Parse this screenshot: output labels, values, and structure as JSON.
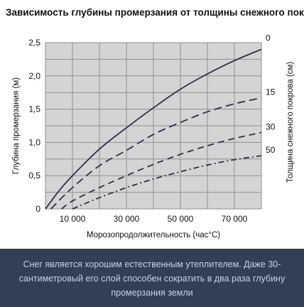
{
  "chart_data": {
    "type": "line",
    "title": "Зависимость глубины промерзания от толщины снежного покрова",
    "xlabel": "Морозопродолжительность (час°С)",
    "ylabel": "Глубина промерзания (м)",
    "y2label": "Толщина снежного покрова (см)",
    "xlim": [
      0,
      80000
    ],
    "ylim": [
      0,
      2.5
    ],
    "xticks": [
      10000,
      30000,
      50000,
      70000
    ],
    "xtick_labels": [
      "10 000",
      "30 000",
      "50 000",
      "70 000"
    ],
    "yticks": [
      0,
      0.5,
      1.0,
      1.5,
      2.0,
      2.5
    ],
    "ytick_labels": [
      "0",
      "0,5",
      "1,0",
      "1,5",
      "2,0",
      "2,5"
    ],
    "grid": true,
    "series": [
      {
        "name": "0",
        "style": "solid",
        "x": [
          0,
          5000,
          10000,
          20000,
          30000,
          40000,
          50000,
          60000,
          70000,
          80000
        ],
        "y": [
          0,
          0.27,
          0.5,
          0.9,
          1.22,
          1.52,
          1.8,
          2.03,
          2.23,
          2.4
        ]
      },
      {
        "name": "15",
        "style": "dashed",
        "x": [
          2000,
          10000,
          20000,
          30000,
          40000,
          50000,
          60000,
          70000,
          80000
        ],
        "y": [
          0,
          0.32,
          0.65,
          0.88,
          1.12,
          1.3,
          1.46,
          1.58,
          1.67
        ]
      },
      {
        "name": "30",
        "style": "dash",
        "x": [
          6000,
          10000,
          20000,
          30000,
          40000,
          50000,
          60000,
          70000,
          80000
        ],
        "y": [
          0,
          0.12,
          0.32,
          0.5,
          0.67,
          0.82,
          0.95,
          1.06,
          1.15
        ]
      },
      {
        "name": "50",
        "style": "dashdot",
        "x": [
          10000,
          20000,
          30000,
          40000,
          50000,
          60000,
          70000,
          80000
        ],
        "y": [
          0,
          0.17,
          0.32,
          0.45,
          0.56,
          0.66,
          0.74,
          0.8
        ]
      }
    ]
  },
  "colors": {
    "line": "#2e2e4a",
    "grid": "#8f8f8f",
    "plot_bg": "#d4d4d4",
    "caption_bg": "#333f55",
    "caption_text": "#c9d1e0"
  },
  "caption": "Снег является хорошим естественным утеплителем. Даже 30-сантиметровый его слой способен сократить в два раза глубину промерзания земли"
}
